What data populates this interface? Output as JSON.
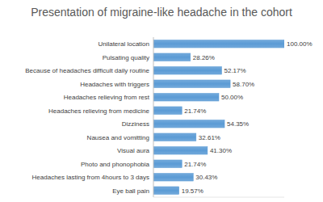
{
  "chart_data": {
    "type": "bar",
    "title": "Presentation of migraine-like headache in the cohort",
    "orientation": "horizontal",
    "categories": [
      "Unilateral location",
      "Pulsating quality",
      "Because of headaches difficult daily routine",
      "Headaches with triggers",
      "Headaches relieving from rest",
      "Headaches relieving from medicine",
      "Dizziness",
      "Nausea and vomitting",
      "Visual aura",
      "Photo and phonophobia",
      "Headaches lasting from 4hours to 3 days",
      "Eye ball pain"
    ],
    "values": [
      100,
      28.26,
      52.17,
      58.7,
      50.0,
      21.74,
      54.35,
      32.61,
      41.3,
      21.74,
      30.43,
      19.57
    ],
    "value_labels": [
      "100.00%",
      "28.26%",
      "52.17%",
      "58.70%",
      "50.00%",
      "21.74%",
      "54.35%",
      "32.61%",
      "41.30%",
      "21.74%",
      "30.43%",
      "19.57%"
    ],
    "xlim": [
      0,
      100
    ],
    "color": "#5b9bd5",
    "data_labels": true,
    "tick_labels": "y",
    "grid": false
  }
}
